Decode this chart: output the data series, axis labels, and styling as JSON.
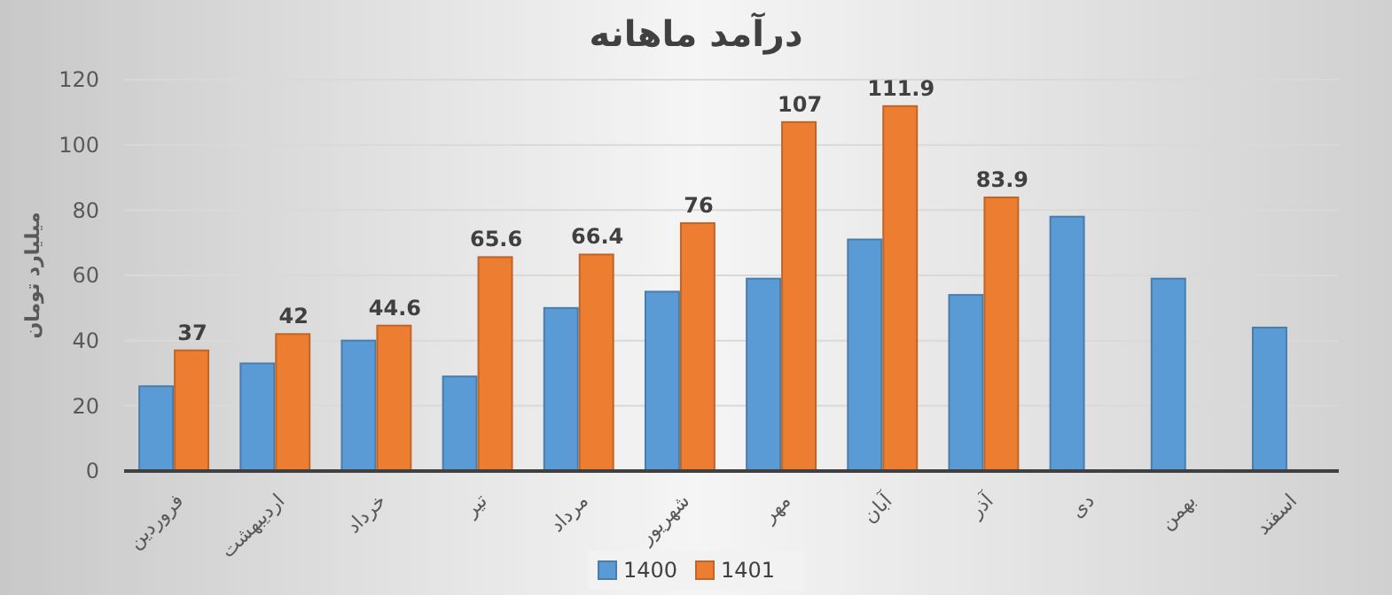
{
  "chart_data": {
    "type": "bar",
    "title": "درآمد ماهانه",
    "ylabel": "میلیارد تومان",
    "categories": [
      "فروردین",
      "اردیبهشت",
      "خرداد",
      "تیر",
      "مرداد",
      "شهریور",
      "مهر",
      "آبان",
      "آذر",
      "دی",
      "بهمن",
      "اسفند"
    ],
    "series": [
      {
        "name": "1400",
        "color": "#5b9bd5",
        "values": [
          26,
          33,
          40,
          29,
          50,
          55,
          59,
          71,
          54,
          78,
          59,
          44
        ]
      },
      {
        "name": "1401",
        "color": "#ed7d31",
        "values": [
          37,
          42,
          44.6,
          65.6,
          66.4,
          76,
          107,
          111.9,
          83.9,
          null,
          null,
          null
        ],
        "value_labels": [
          "37",
          "42",
          "44.6",
          "65.6",
          "66.4",
          "76",
          "107",
          "111.9",
          "83.9",
          null,
          null,
          null
        ]
      }
    ],
    "ylim": [
      0,
      120
    ],
    "yticks": [
      0,
      20,
      40,
      60,
      80,
      100,
      120
    ],
    "grid": "y",
    "legend": "bottom"
  }
}
